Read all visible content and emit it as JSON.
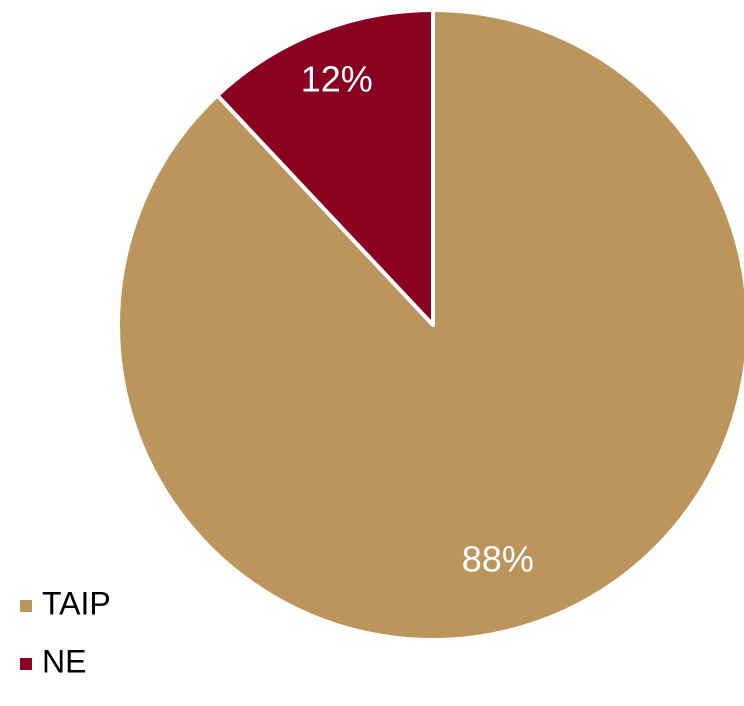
{
  "chart_data": {
    "type": "pie",
    "slices": [
      {
        "label": "TAIP",
        "value": 88,
        "display": "88%",
        "color": "#BC955C"
      },
      {
        "label": "NE",
        "value": 12,
        "display": "12%",
        "color": "#8A0021"
      }
    ],
    "legend": {
      "placement": "bottom-left",
      "entries": [
        "TAIP",
        "NE"
      ]
    },
    "start_angle_deg": 0,
    "direction": "clockwise"
  }
}
